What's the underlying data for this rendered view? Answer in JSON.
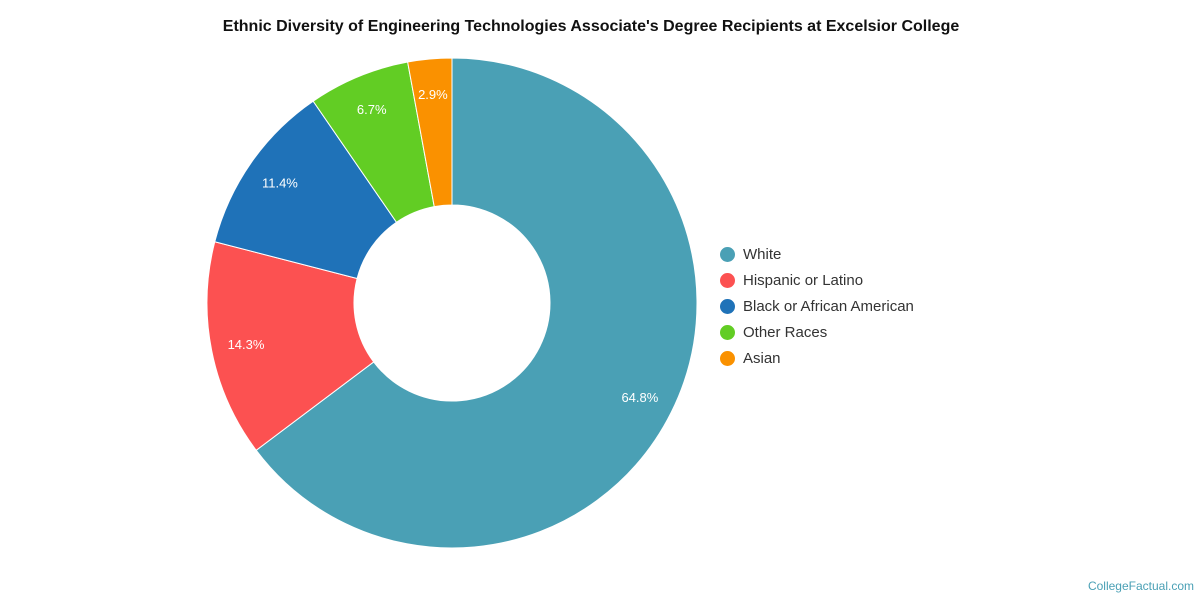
{
  "chart_data": {
    "type": "pie",
    "donut": true,
    "title": "Ethnic Diversity of Engineering Technologies Associate's Degree Recipients at Excelsior College",
    "categories": [
      "White",
      "Hispanic or Latino",
      "Black or African American",
      "Other Races",
      "Asian"
    ],
    "values": [
      64.8,
      14.3,
      11.4,
      6.7,
      2.9
    ],
    "labels": [
      "64.8%",
      "14.3%",
      "11.4%",
      "6.7%",
      "2.9%"
    ],
    "colors": [
      "#4aa0b5",
      "#fc5151",
      "#1f72b8",
      "#62cd24",
      "#fa9100"
    ],
    "legend_position": "right"
  },
  "watermark": "CollegeFactual.com"
}
